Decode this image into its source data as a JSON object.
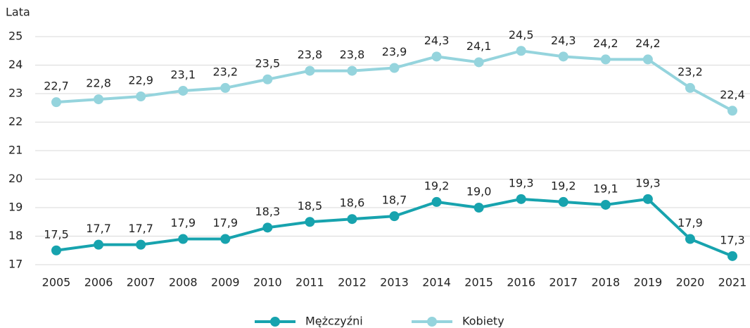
{
  "chart_data": {
    "type": "line",
    "y_label": "Lata",
    "categories": [
      "2005",
      "2006",
      "2007",
      "2008",
      "2009",
      "2010",
      "2011",
      "2012",
      "2013",
      "2014",
      "2015",
      "2016",
      "2017",
      "2018",
      "2019",
      "2020",
      "2021"
    ],
    "series": [
      {
        "name": "Mężczyźni",
        "color": "#17a3ae",
        "values": [
          17.5,
          17.7,
          17.7,
          17.9,
          17.9,
          18.3,
          18.5,
          18.6,
          18.7,
          19.2,
          19.0,
          19.3,
          19.2,
          19.1,
          19.3,
          17.9,
          17.3
        ],
        "value_labels": [
          "17,5",
          "17,7",
          "17,7",
          "17,9",
          "17,9",
          "18,3",
          "18,5",
          "18,6",
          "18,7",
          "19,2",
          "19,0",
          "19,3",
          "19,2",
          "19,1",
          "19,3",
          "17,9",
          "17,3"
        ]
      },
      {
        "name": "Kobiety",
        "color": "#95d4dd",
        "values": [
          22.7,
          22.8,
          22.9,
          23.1,
          23.2,
          23.5,
          23.8,
          23.8,
          23.9,
          24.3,
          24.1,
          24.5,
          24.3,
          24.2,
          24.2,
          23.2,
          22.4
        ],
        "value_labels": [
          "22,7",
          "22,8",
          "22,9",
          "23,1",
          "23,2",
          "23,5",
          "23,8",
          "23,8",
          "23,9",
          "24,3",
          "24,1",
          "24,5",
          "24,3",
          "24,2",
          "24,2",
          "23,2",
          "22,4"
        ]
      }
    ],
    "ylim": [
      17,
      25
    ],
    "yticks": [
      17,
      18,
      19,
      20,
      21,
      22,
      23,
      24,
      25
    ],
    "grid": true,
    "legend": "bottom"
  }
}
